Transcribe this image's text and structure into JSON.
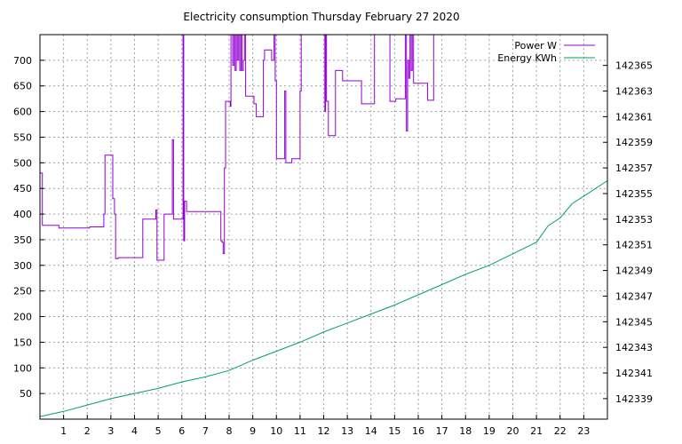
{
  "chart_data": {
    "type": "line",
    "title": "Electricity consumption Thursday February 27 2020",
    "xlabel": "",
    "ylabel": "",
    "xlim": [
      0,
      24
    ],
    "ylim": [
      0,
      750
    ],
    "y2lim": [
      142337.4,
      142367.4
    ],
    "x_ticks": [
      1,
      2,
      3,
      4,
      5,
      6,
      7,
      8,
      9,
      10,
      11,
      12,
      13,
      14,
      15,
      16,
      17,
      18,
      19,
      20,
      21,
      22,
      23
    ],
    "y_ticks": [
      50,
      100,
      150,
      200,
      250,
      300,
      350,
      400,
      450,
      500,
      550,
      600,
      650,
      700
    ],
    "y2_ticks": [
      142339,
      142341,
      142343,
      142345,
      142347,
      142349,
      142351,
      142353,
      142355,
      142357,
      142359,
      142361,
      142363,
      142365
    ],
    "grid": true,
    "legend_position": "top-right",
    "series": [
      {
        "name": "Power W",
        "axis": "left",
        "color": "#9400d3",
        "step": true,
        "points": [
          [
            0,
            480
          ],
          [
            0.1,
            378
          ],
          [
            0.7,
            378
          ],
          [
            0.8,
            373
          ],
          [
            2.0,
            373
          ],
          [
            2.1,
            375
          ],
          [
            2.6,
            375
          ],
          [
            2.7,
            400
          ],
          [
            2.75,
            515
          ],
          [
            3.05,
            515
          ],
          [
            3.08,
            430
          ],
          [
            3.15,
            400
          ],
          [
            3.2,
            313
          ],
          [
            3.3,
            315
          ],
          [
            4.3,
            315
          ],
          [
            4.35,
            390
          ],
          [
            4.85,
            390
          ],
          [
            4.9,
            408
          ],
          [
            4.95,
            310
          ],
          [
            5.2,
            310
          ],
          [
            5.25,
            400
          ],
          [
            5.55,
            400
          ],
          [
            5.6,
            545
          ],
          [
            5.65,
            390
          ],
          [
            6.0,
            390
          ],
          [
            6.05,
            750
          ],
          [
            6.08,
            348
          ],
          [
            6.12,
            425
          ],
          [
            6.2,
            405
          ],
          [
            7.2,
            405
          ],
          [
            7.3,
            405
          ],
          [
            7.6,
            405
          ],
          [
            7.65,
            348
          ],
          [
            7.7,
            345
          ],
          [
            7.75,
            323
          ],
          [
            7.8,
            490
          ],
          [
            7.85,
            620
          ],
          [
            8.0,
            620
          ],
          [
            8.05,
            610
          ],
          [
            8.08,
            750
          ],
          [
            8.15,
            690
          ],
          [
            8.2,
            750
          ],
          [
            8.25,
            680
          ],
          [
            8.3,
            750
          ],
          [
            8.35,
            700
          ],
          [
            8.4,
            750
          ],
          [
            8.45,
            680
          ],
          [
            8.5,
            750
          ],
          [
            8.55,
            680
          ],
          [
            8.6,
            700
          ],
          [
            8.65,
            750
          ],
          [
            8.7,
            630
          ],
          [
            9.0,
            630
          ],
          [
            9.05,
            615
          ],
          [
            9.15,
            590
          ],
          [
            9.4,
            590
          ],
          [
            9.45,
            700
          ],
          [
            9.5,
            720
          ],
          [
            9.75,
            720
          ],
          [
            9.8,
            700
          ],
          [
            9.9,
            750
          ],
          [
            9.95,
            660
          ],
          [
            10.0,
            508
          ],
          [
            10.3,
            508
          ],
          [
            10.35,
            640
          ],
          [
            10.4,
            500
          ],
          [
            10.6,
            500
          ],
          [
            10.65,
            508
          ],
          [
            10.95,
            508
          ],
          [
            11.0,
            640
          ],
          [
            11.05,
            750
          ],
          [
            12.0,
            750
          ],
          [
            12.05,
            600
          ],
          [
            12.08,
            750
          ],
          [
            12.12,
            620
          ],
          [
            12.2,
            553
          ],
          [
            12.45,
            553
          ],
          [
            12.5,
            680
          ],
          [
            12.75,
            680
          ],
          [
            12.8,
            660
          ],
          [
            13.55,
            660
          ],
          [
            13.6,
            615
          ],
          [
            14.1,
            615
          ],
          [
            14.15,
            750
          ],
          [
            14.75,
            750
          ],
          [
            14.8,
            620
          ],
          [
            15.0,
            620
          ],
          [
            15.05,
            625
          ],
          [
            15.4,
            625
          ],
          [
            15.45,
            750
          ],
          [
            15.5,
            562
          ],
          [
            15.55,
            700
          ],
          [
            15.6,
            665
          ],
          [
            15.65,
            750
          ],
          [
            15.7,
            680
          ],
          [
            15.75,
            750
          ],
          [
            15.8,
            655
          ],
          [
            16.35,
            655
          ],
          [
            16.4,
            622
          ],
          [
            16.6,
            622
          ],
          [
            16.65,
            750
          ]
        ]
      },
      {
        "name": "Energy KWh",
        "axis": "right",
        "color": "#009e73",
        "step": false,
        "points": [
          [
            0,
            142337.6
          ],
          [
            1,
            142338.0
          ],
          [
            2,
            142338.5
          ],
          [
            3,
            142339.0
          ],
          [
            4,
            142339.4
          ],
          [
            5,
            142339.8
          ],
          [
            6,
            142340.3
          ],
          [
            7,
            142340.7
          ],
          [
            8,
            142341.2
          ],
          [
            9,
            142342.0
          ],
          [
            10,
            142342.7
          ],
          [
            11,
            142343.4
          ],
          [
            12,
            142344.2
          ],
          [
            13,
            142344.9
          ],
          [
            14,
            142345.6
          ],
          [
            15,
            142346.3
          ],
          [
            16,
            142347.1
          ],
          [
            17,
            142347.9
          ],
          [
            18,
            142348.7
          ],
          [
            19,
            142349.4
          ],
          [
            20,
            142350.3
          ],
          [
            21,
            142351.2
          ],
          [
            21.5,
            142352.5
          ],
          [
            22,
            142353.1
          ],
          [
            22.5,
            142354.2
          ],
          [
            23,
            142354.8
          ],
          [
            24,
            142356.0
          ]
        ]
      }
    ]
  }
}
